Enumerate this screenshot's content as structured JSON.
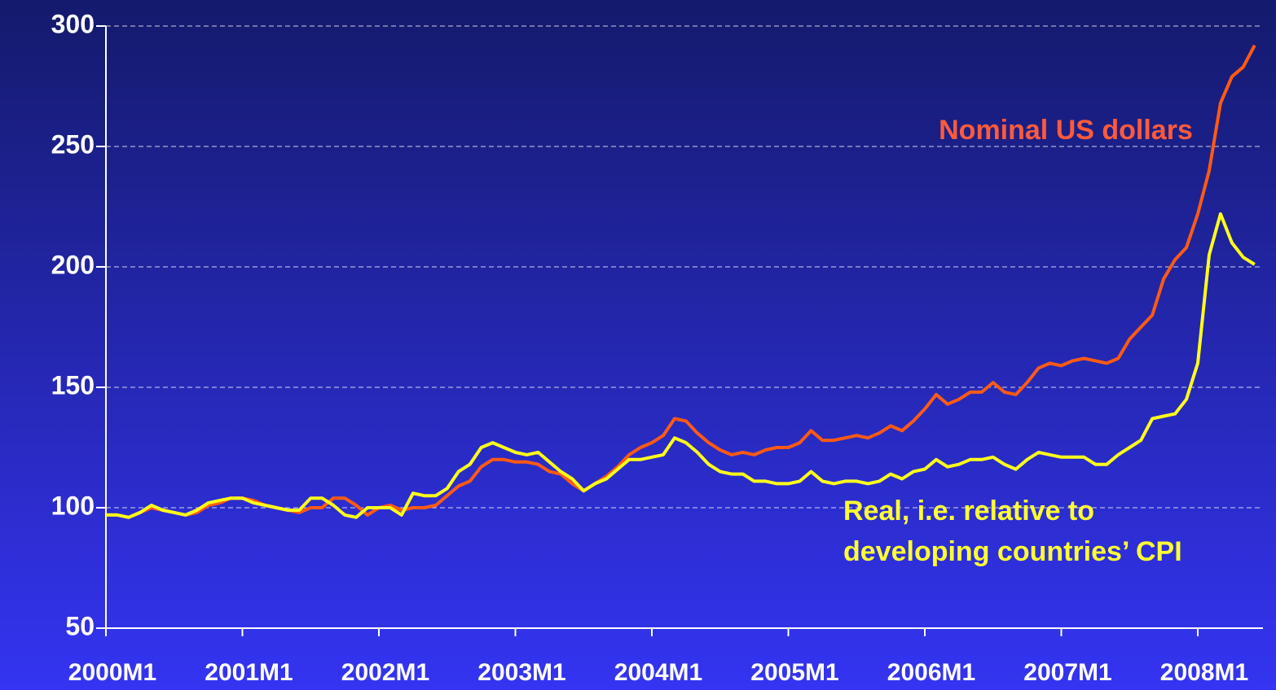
{
  "chart_data": {
    "type": "line",
    "categories": [
      "2000M1",
      null,
      null,
      null,
      null,
      null,
      null,
      null,
      null,
      null,
      null,
      null,
      "2001M1",
      null,
      null,
      null,
      null,
      null,
      null,
      null,
      null,
      null,
      null,
      null,
      "2002M1",
      null,
      null,
      null,
      null,
      null,
      null,
      null,
      null,
      null,
      null,
      null,
      "2003M1",
      null,
      null,
      null,
      null,
      null,
      null,
      null,
      null,
      null,
      null,
      null,
      "2004M1",
      null,
      null,
      null,
      null,
      null,
      null,
      null,
      null,
      null,
      null,
      null,
      "2005M1",
      null,
      null,
      null,
      null,
      null,
      null,
      null,
      null,
      null,
      null,
      null,
      "2006M1",
      null,
      null,
      null,
      null,
      null,
      null,
      null,
      null,
      null,
      null,
      null,
      "2007M1",
      null,
      null,
      null,
      null,
      null,
      null,
      null,
      null,
      null,
      null,
      null,
      "2008M1",
      null,
      null,
      null,
      null,
      null
    ],
    "series": [
      {
        "name": "Nominal US dollars",
        "color": "#ff5a14",
        "values": [
          97,
          97,
          96,
          98,
          100,
          99,
          98,
          97,
          98,
          101,
          102,
          104,
          104,
          103,
          101,
          100,
          99,
          98,
          100,
          100,
          104,
          104,
          101,
          97,
          100,
          101,
          99,
          100,
          100,
          101,
          105,
          109,
          111,
          117,
          120,
          120,
          119,
          119,
          118,
          115,
          114,
          110,
          107,
          110,
          113,
          117,
          122,
          125,
          127,
          130,
          137,
          136,
          131,
          127,
          124,
          122,
          123,
          122,
          124,
          125,
          125,
          127,
          132,
          128,
          128,
          129,
          130,
          129,
          131,
          134,
          132,
          136,
          141,
          147,
          143,
          145,
          148,
          148,
          152,
          148,
          147,
          152,
          158,
          160,
          159,
          161,
          162,
          161,
          160,
          162,
          170,
          175,
          180,
          195,
          203,
          208,
          222,
          240,
          268,
          279,
          283,
          292
        ]
      },
      {
        "name": "Real, i.e. relative to developing countries’ CPI",
        "color": "#ffff1a",
        "values": [
          97,
          97,
          96,
          98,
          101,
          99,
          98,
          97,
          99,
          102,
          103,
          104,
          104,
          102,
          101,
          100,
          99,
          99,
          104,
          104,
          101,
          97,
          96,
          100,
          100,
          100,
          97,
          106,
          105,
          105,
          108,
          115,
          118,
          125,
          127,
          125,
          123,
          122,
          123,
          119,
          115,
          112,
          107,
          110,
          112,
          116,
          120,
          120,
          121,
          122,
          129,
          127,
          123,
          118,
          115,
          114,
          114,
          111,
          111,
          110,
          110,
          111,
          115,
          111,
          110,
          111,
          111,
          110,
          111,
          114,
          112,
          115,
          116,
          120,
          117,
          118,
          120,
          120,
          121,
          118,
          116,
          120,
          123,
          122,
          121,
          121,
          121,
          118,
          118,
          122,
          125,
          128,
          137,
          138,
          139,
          145,
          160,
          205,
          222,
          210,
          204,
          201
        ]
      }
    ],
    "annotations": [
      {
        "lines": [
          "Nominal US dollars"
        ],
        "color": "#ff5a3c"
      },
      {
        "lines": [
          "Real, i.e. relative to",
          "developing countries’ CPI"
        ],
        "color": "#ffff33"
      }
    ],
    "ylim": [
      50,
      300
    ],
    "yticks": [
      50,
      100,
      150,
      200,
      250,
      300
    ],
    "grid": true
  }
}
